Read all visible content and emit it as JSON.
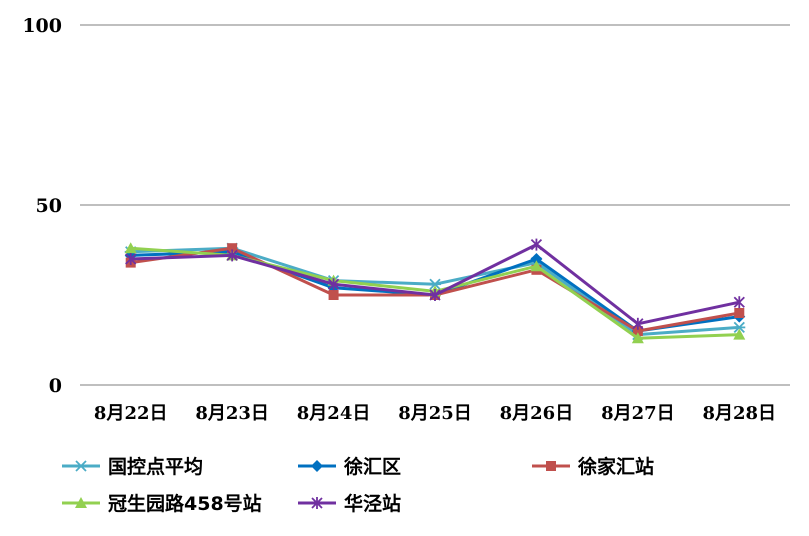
{
  "chart_data": {
    "type": "line",
    "categories": [
      "8月22日",
      "8月23日",
      "8月24日",
      "8月25日",
      "8月26日",
      "8月27日",
      "8月28日"
    ],
    "ylim": [
      0,
      100
    ],
    "yticks": [
      0,
      50,
      100
    ],
    "grid": true,
    "legend_position": "bottom",
    "series": [
      {
        "name": "国控点平均",
        "color": "#4BACC6",
        "marker": "asterisk",
        "values": [
          37,
          38,
          29,
          28,
          34,
          14,
          16
        ]
      },
      {
        "name": "徐汇区",
        "color": "#0070C0",
        "marker": "diamond",
        "values": [
          36,
          37,
          27,
          25,
          35,
          15,
          19
        ]
      },
      {
        "name": "徐家汇站",
        "color": "#C0504D",
        "marker": "square",
        "values": [
          34,
          38,
          25,
          25,
          32,
          15,
          20
        ]
      },
      {
        "name": "冠生园路458号站",
        "color": "#92D050",
        "marker": "triangle",
        "values": [
          38,
          36,
          29,
          26,
          33,
          13,
          14
        ]
      },
      {
        "name": "华泾站",
        "color": "#7030A0",
        "marker": "star",
        "values": [
          35,
          36,
          28,
          25,
          39,
          17,
          23
        ]
      }
    ]
  }
}
